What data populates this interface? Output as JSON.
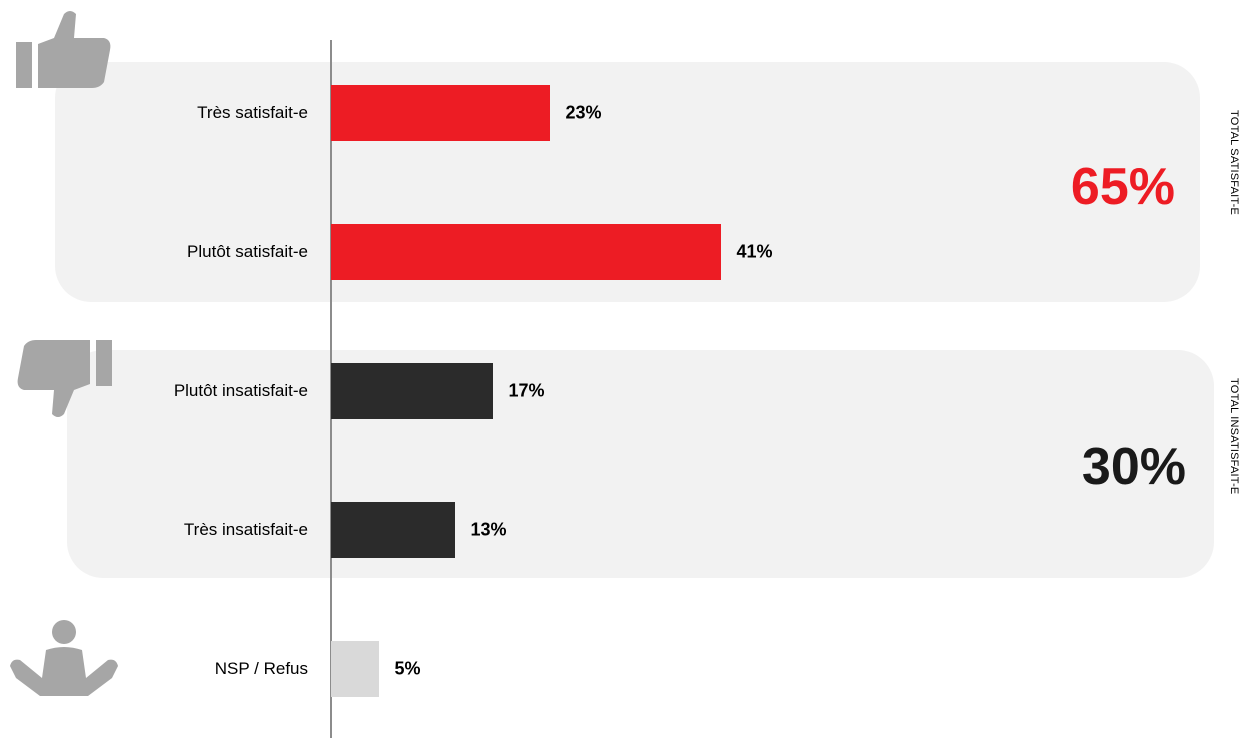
{
  "chart_data": {
    "type": "bar",
    "orientation": "horizontal",
    "categories": [
      "Très satisfait-e",
      "Plutôt satisfait-e",
      "Plutôt insatisfait-e",
      "Très insatisfait-e",
      "NSP / Refus"
    ],
    "values": [
      23,
      41,
      17,
      13,
      5
    ],
    "value_labels": [
      "23%",
      "41%",
      "17%",
      "13%",
      "5%"
    ],
    "unit": "%",
    "xlim": [
      0,
      100
    ],
    "grid": false,
    "bar_colors": [
      "#ed1c24",
      "#ed1c24",
      "#2b2b2b",
      "#2b2b2b",
      "#d9d9d9"
    ],
    "groups": [
      {
        "caption": "TOTAL SATISFAIT-E",
        "total": "65%",
        "color": "#ed1c24",
        "members": [
          0,
          1
        ]
      },
      {
        "caption": "TOTAL INSATISFAIT-E",
        "total": "30%",
        "color": "#1a1a1a",
        "members": [
          2,
          3
        ]
      }
    ]
  },
  "icons": {
    "satisfied": "thumbs-up-icon",
    "unsatisfied": "thumbs-down-icon",
    "no_answer": "shrug-icon",
    "color": "#a6a6a6"
  },
  "colors": {
    "panel": "#f2f2f2",
    "axis": "#8c8c8c"
  }
}
